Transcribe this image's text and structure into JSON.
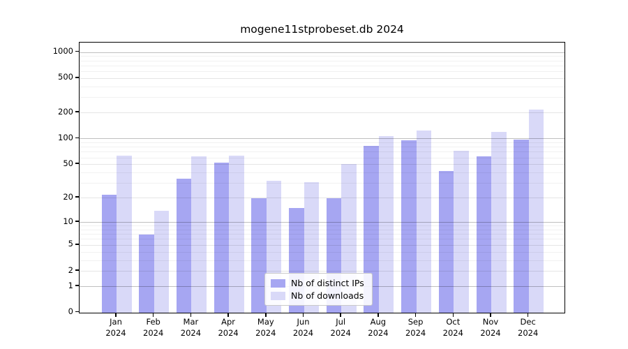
{
  "chart_data": {
    "type": "bar",
    "title": "mogene11stprobeset.db 2024",
    "categories": [
      "Jan 2024",
      "Feb 2024",
      "Mar 2024",
      "Apr 2024",
      "May 2024",
      "Jun 2024",
      "Jul 2024",
      "Aug 2024",
      "Sep 2024",
      "Oct 2024",
      "Nov 2024",
      "Dec 2024"
    ],
    "series": [
      {
        "name": "Nb of distinct IPs",
        "color": "#a6a6f2",
        "values": [
          22,
          7,
          34,
          53,
          20,
          15,
          20,
          82,
          97,
          42,
          62,
          98
        ]
      },
      {
        "name": "Nb of downloads",
        "color": "#d9d9f8",
        "values": [
          64,
          14,
          62,
          64,
          32,
          31,
          51,
          108,
          125,
          72,
          120,
          220
        ]
      }
    ],
    "xlabel": "",
    "ylabel": "",
    "yscale": "log10(value+1)",
    "yticks": [
      0,
      1,
      2,
      5,
      10,
      20,
      50,
      100,
      200,
      500,
      1000
    ],
    "ylim": [
      0,
      1300
    ],
    "grid": "horizontal major + log minors",
    "legend_position": "inside lower-center"
  }
}
